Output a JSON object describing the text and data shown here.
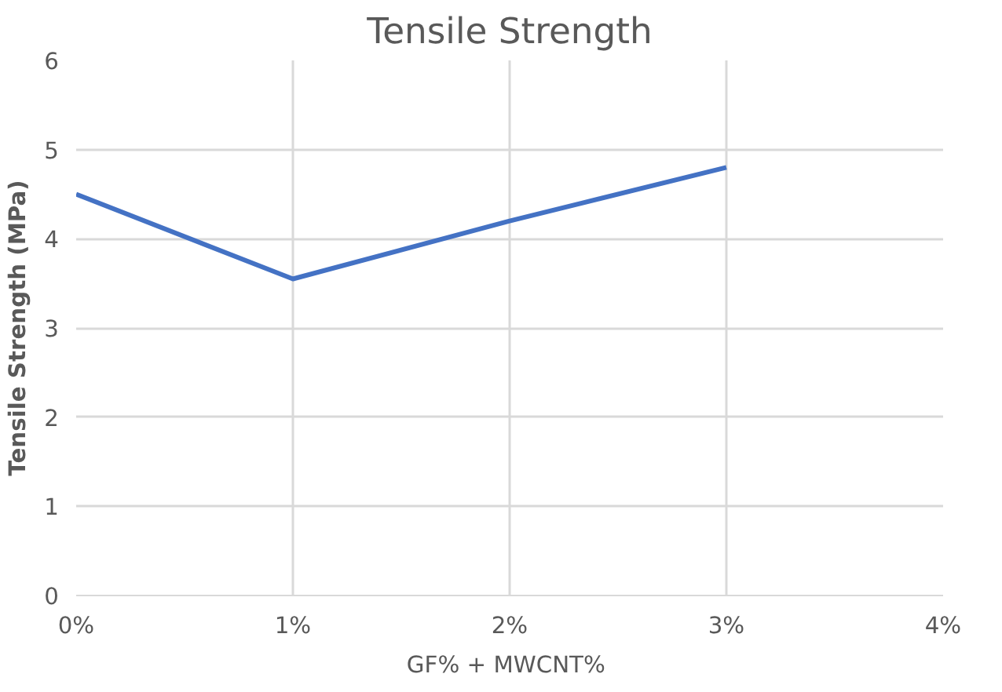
{
  "chart_data": {
    "type": "line",
    "title": "Tensile Strength",
    "xlabel": "GF% +  MWCNT%",
    "ylabel": "Tensile Strength (MPa)",
    "x": [
      0,
      1,
      2,
      3
    ],
    "series": [
      {
        "color": "#4472c4",
        "values": [
          4.5,
          3.55,
          4.2,
          4.8
        ]
      }
    ],
    "xlim": [
      0,
      4
    ],
    "xticks": [
      {
        "value": 0,
        "label": "0%"
      },
      {
        "value": 1,
        "label": "1%"
      },
      {
        "value": 2,
        "label": "2%"
      },
      {
        "value": 3,
        "label": "3%"
      },
      {
        "value": 4,
        "label": "4%"
      }
    ],
    "ylim": [
      0,
      6
    ],
    "yticks": [
      0,
      1,
      2,
      3,
      4,
      5,
      6
    ],
    "grid": true,
    "marker": "none",
    "line_style": "solid"
  }
}
